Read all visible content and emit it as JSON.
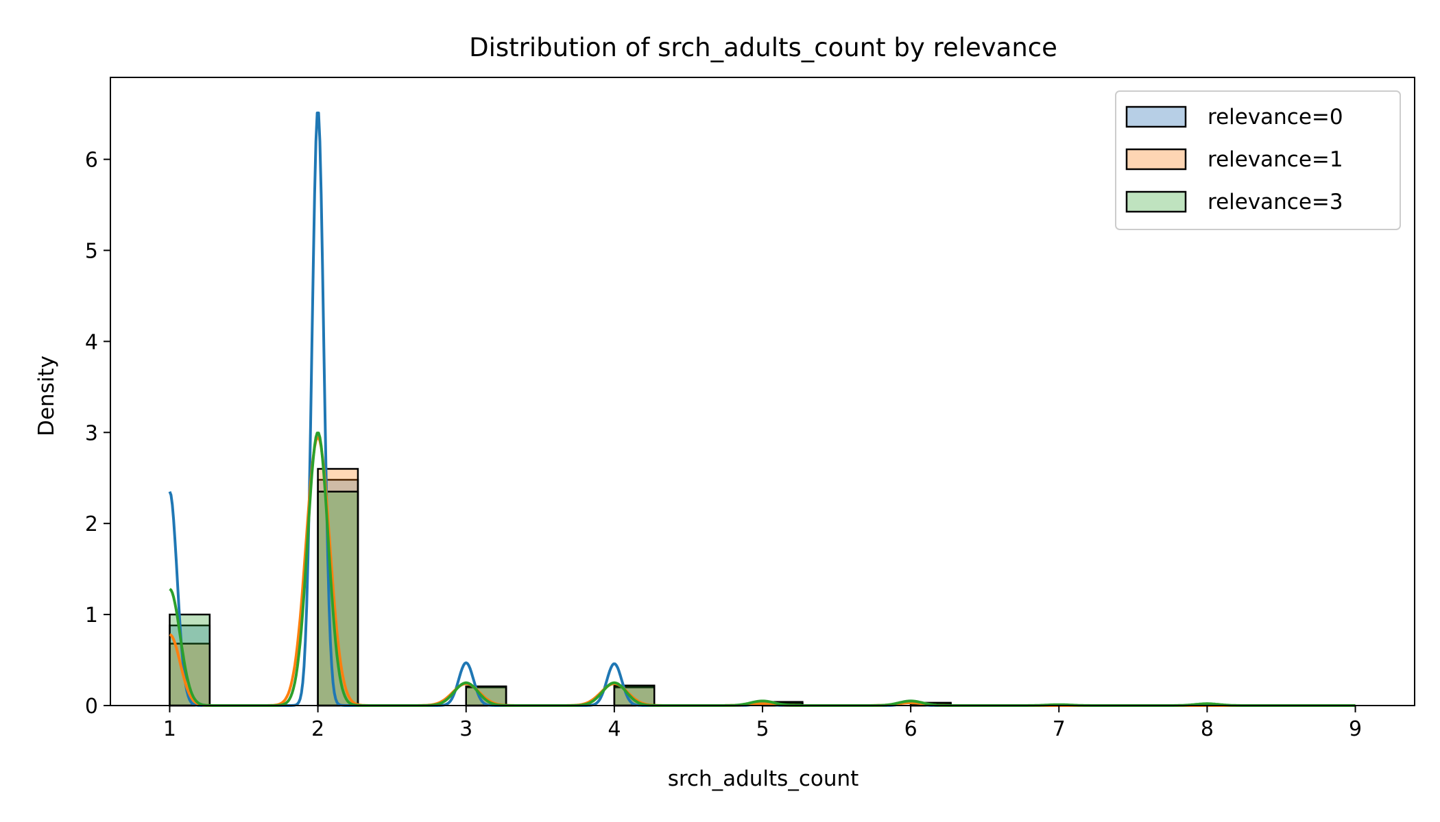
{
  "chart_data": {
    "type": "bar",
    "title": "Distribution of srch_adults_count by relevance",
    "xlabel": "srch_adults_count",
    "ylabel": "Density",
    "xlim": [
      0.6,
      9.4
    ],
    "ylim": [
      0,
      6.9
    ],
    "xticks": [
      1,
      2,
      3,
      4,
      5,
      6,
      7,
      8,
      9
    ],
    "yticks": [
      0,
      1,
      2,
      3,
      4,
      5,
      6
    ],
    "grid": false,
    "legend_position": "top-right",
    "bin_width": 0.27,
    "series": [
      {
        "name": "relevance=0",
        "color": "#1f77b4",
        "fill": "#b7cfe6",
        "histogram": [
          {
            "x": 1,
            "density": 0.88
          },
          {
            "x": 2,
            "density": 2.48
          },
          {
            "x": 3,
            "density": 0.21
          },
          {
            "x": 4,
            "density": 0.21
          },
          {
            "x": 5,
            "density": 0.03
          },
          {
            "x": 6,
            "density": 0.03
          }
        ],
        "kde": {
          "peaks": [
            {
              "x": 1,
              "y": 2.35,
              "w": 0.05
            },
            {
              "x": 2,
              "y": 6.55,
              "w": 0.04
            },
            {
              "x": 3,
              "y": 0.47,
              "w": 0.05
            },
            {
              "x": 4,
              "y": 0.46,
              "w": 0.05
            },
            {
              "x": 5,
              "y": 0.03,
              "w": 0.05
            },
            {
              "x": 6,
              "y": 0.05,
              "w": 0.05
            }
          ]
        }
      },
      {
        "name": "relevance=1",
        "color": "#ff7f0e",
        "fill": "#fdd5b3",
        "histogram": [
          {
            "x": 1,
            "density": 0.68
          },
          {
            "x": 2,
            "density": 2.6
          },
          {
            "x": 3,
            "density": 0.2
          },
          {
            "x": 4,
            "density": 0.2
          },
          {
            "x": 5,
            "density": 0.02
          },
          {
            "x": 6,
            "density": 0.02
          }
        ],
        "kde": {
          "peaks": [
            {
              "x": 1,
              "y": 0.78,
              "w": 0.07
            },
            {
              "x": 2,
              "y": 2.95,
              "w": 0.08
            },
            {
              "x": 3,
              "y": 0.24,
              "w": 0.09
            },
            {
              "x": 4,
              "y": 0.24,
              "w": 0.09
            },
            {
              "x": 5,
              "y": 0.02,
              "w": 0.09
            },
            {
              "x": 6,
              "y": 0.03,
              "w": 0.09
            }
          ]
        }
      },
      {
        "name": "relevance=3",
        "color": "#2ca02c",
        "fill": "#bfe3bf",
        "histogram": [
          {
            "x": 1,
            "density": 1.0
          },
          {
            "x": 2,
            "density": 2.35
          },
          {
            "x": 3,
            "density": 0.21
          },
          {
            "x": 4,
            "density": 0.22
          },
          {
            "x": 5,
            "density": 0.04
          },
          {
            "x": 6,
            "density": 0.03
          }
        ],
        "kde": {
          "peaks": [
            {
              "x": 1,
              "y": 1.28,
              "w": 0.07
            },
            {
              "x": 2,
              "y": 3.0,
              "w": 0.07
            },
            {
              "x": 3,
              "y": 0.25,
              "w": 0.08
            },
            {
              "x": 4,
              "y": 0.25,
              "w": 0.08
            },
            {
              "x": 5,
              "y": 0.05,
              "w": 0.08
            },
            {
              "x": 6,
              "y": 0.05,
              "w": 0.08
            },
            {
              "x": 7,
              "y": 0.01,
              "w": 0.08
            },
            {
              "x": 8,
              "y": 0.02,
              "w": 0.08
            }
          ]
        }
      }
    ]
  }
}
